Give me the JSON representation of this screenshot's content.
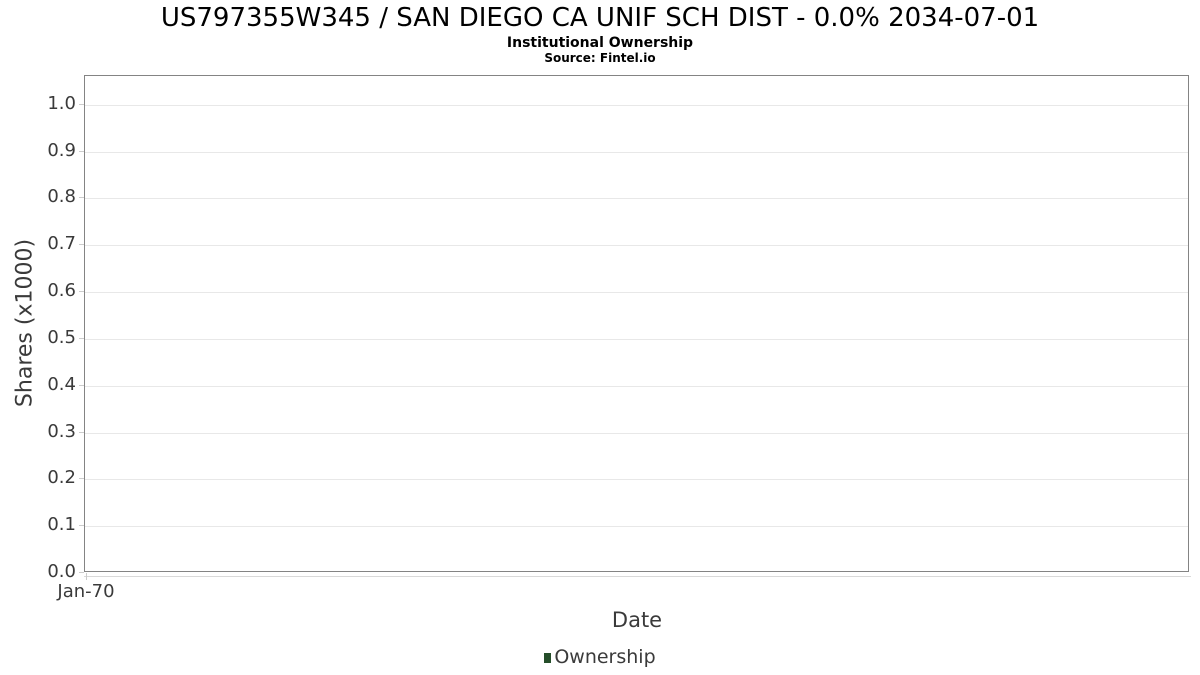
{
  "title": "US797355W345 / SAN DIEGO CA UNIF SCH DIST - 0.0% 2034-07-01",
  "subtitle": "Institutional Ownership",
  "source": "Source: Fintel.io",
  "chart_data": {
    "type": "line",
    "title": "US797355W345 / SAN DIEGO CA UNIF SCH DIST - 0.0% 2034-07-01",
    "subtitle": "Institutional Ownership",
    "source": "Source: Fintel.io",
    "xlabel": "Date",
    "ylabel": "Shares (x1000)",
    "x_tick_labels": [
      "Jan-70"
    ],
    "y_tick_labels": [
      "0.0",
      "0.1",
      "0.2",
      "0.3",
      "0.4",
      "0.5",
      "0.6",
      "0.7",
      "0.8",
      "0.9",
      "1.0"
    ],
    "ylim": [
      0,
      1.057
    ],
    "grid": "horizontal",
    "legend_position": "bottom-center",
    "series": [
      {
        "name": "Ownership",
        "color": "#254e2a",
        "x": [],
        "values": []
      }
    ]
  }
}
